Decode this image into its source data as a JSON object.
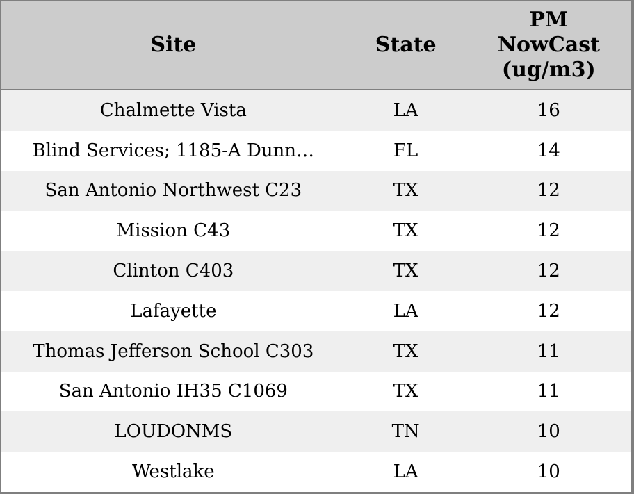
{
  "chart_data": {
    "type": "table",
    "title": "",
    "columns": [
      "Site",
      "State",
      "PM NowCast (ug/m3)"
    ],
    "pm_header_lines": [
      "PM",
      "NowCast",
      "(ug/m3)"
    ],
    "rows": [
      [
        "Chalmette Vista",
        "LA",
        "16"
      ],
      [
        "Blind Services; 1185-A Dunn…",
        "FL",
        "14"
      ],
      [
        "San Antonio Northwest C23",
        "TX",
        "12"
      ],
      [
        "Mission C43",
        "TX",
        "12"
      ],
      [
        "Clinton C403",
        "TX",
        "12"
      ],
      [
        "Lafayette",
        "LA",
        "12"
      ],
      [
        "Thomas Jefferson School C303",
        "TX",
        "11"
      ],
      [
        "San Antonio IH35 C1069",
        "TX",
        "11"
      ],
      [
        "LOUDONMS",
        "TN",
        "10"
      ],
      [
        "Westlake",
        "LA",
        "10"
      ]
    ],
    "values_numeric": [
      16,
      14,
      12,
      12,
      12,
      12,
      11,
      11,
      10,
      10
    ],
    "layout": {
      "striped": true,
      "header_background": "#cccccc",
      "stripe_color": "#efefef",
      "row_background": "#ffffff",
      "border_color": "#7f7f7f",
      "text_color": "#000000"
    }
  }
}
